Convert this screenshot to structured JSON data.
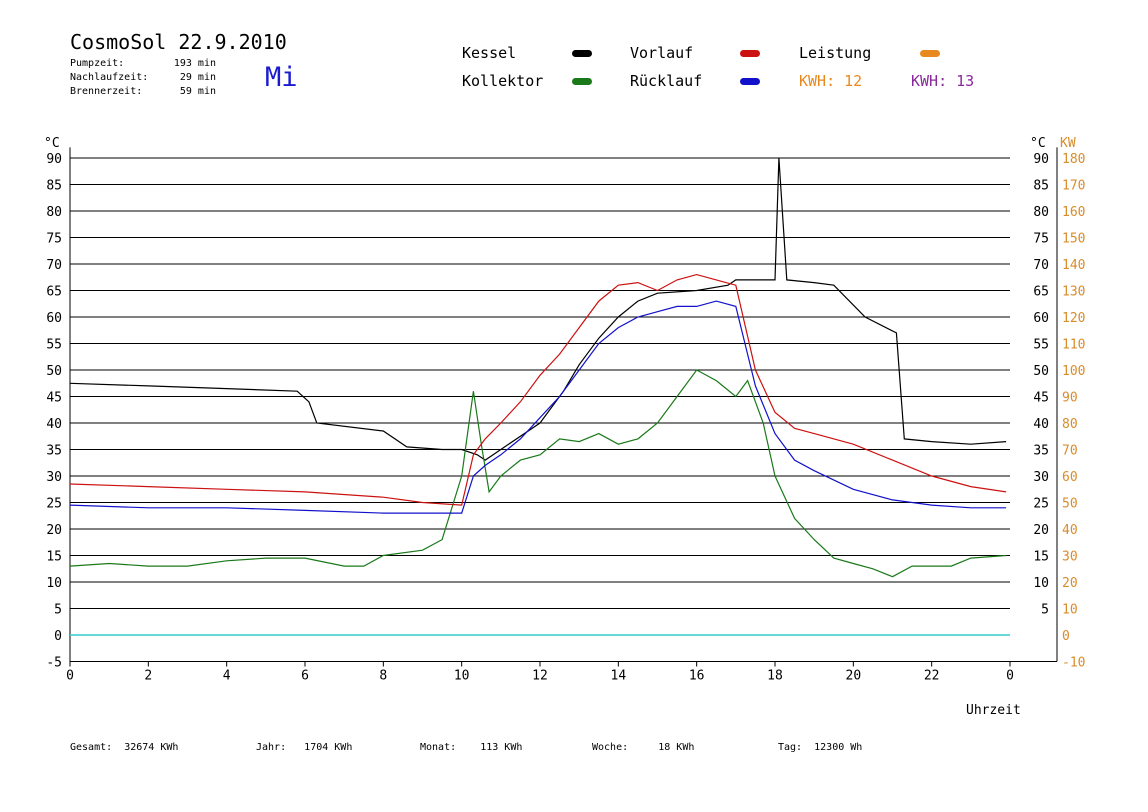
{
  "header": {
    "title": "CosmoSol 22.9.2010",
    "day": "Mi",
    "stats": [
      {
        "label": "Pumpzeit:",
        "value": "193 min"
      },
      {
        "label": "Nachlaufzeit:",
        "value": "29 min"
      },
      {
        "label": "Brennerzeit:",
        "value": "59 min"
      }
    ]
  },
  "legend": {
    "kessel": "Kessel",
    "kollektor": "Kollektor",
    "vorlauf": "Vorlauf",
    "ruecklauf": "Rücklauf",
    "leistung": "Leistung",
    "kwh1_label": "KWH:",
    "kwh1_value": "12",
    "kwh2_label": "KWH:",
    "kwh2_value": "13"
  },
  "footer": {
    "gesamt_label": "Gesamt:",
    "gesamt_value": "32674 KWh",
    "jahr_label": "Jahr:",
    "jahr_value": "1704 KWh",
    "monat_label": "Monat:",
    "monat_value": "113 KWh",
    "woche_label": "Woche:",
    "woche_value": "18 KWh",
    "tag_label": "Tag:",
    "tag_value": "12300 Wh"
  },
  "chart_data": {
    "type": "line",
    "xlabel": "Uhrzeit",
    "ylabel_left": "°C",
    "ylabel_right_1": "°C",
    "ylabel_right_2": "KW",
    "xlim": [
      0,
      24
    ],
    "ylim": [
      -5,
      92
    ],
    "ylim_right_kw": [
      -10,
      184
    ],
    "x_ticks": [
      "0",
      "2",
      "4",
      "6",
      "8",
      "10",
      "12",
      "14",
      "16",
      "18",
      "20",
      "22",
      "0"
    ],
    "y_ticks": [
      "-5",
      "0",
      "5",
      "10",
      "15",
      "20",
      "25",
      "30",
      "35",
      "40",
      "45",
      "50",
      "55",
      "60",
      "65",
      "70",
      "75",
      "80",
      "85",
      "90"
    ],
    "y_ticks_right_c": [
      "5",
      "10",
      "15",
      "20",
      "25",
      "30",
      "35",
      "40",
      "45",
      "50",
      "55",
      "60",
      "65",
      "70",
      "75",
      "80",
      "85",
      "90"
    ],
    "y_ticks_right_kw": [
      "-10",
      "0",
      "10",
      "20",
      "30",
      "40",
      "50",
      "60",
      "70",
      "80",
      "90",
      "100",
      "110",
      "120",
      "130",
      "140",
      "150",
      "160",
      "170",
      "180"
    ],
    "grid": true,
    "colors": {
      "kessel": "#000000",
      "kollektor": "#1a7a1a",
      "vorlauf": "#cc1111",
      "ruecklauf": "#1111cc",
      "leistung": "#e8891e",
      "kwh2": "#8a2a9a",
      "pump": "#33cccc",
      "axis_right": "#d98c2a"
    },
    "series": [
      {
        "name": "Kessel",
        "x": [
          0,
          2,
          4,
          5.8,
          6.1,
          6.3,
          8,
          8.6,
          9.5,
          10,
          10.4,
          10.6,
          11,
          12,
          12.6,
          13,
          13.5,
          14,
          14.5,
          15,
          16,
          16.8,
          17,
          18,
          18.1,
          18.3,
          19,
          19.5,
          20.3,
          21.1,
          21.3,
          22,
          23,
          23.9
        ],
        "y": [
          47.5,
          47,
          46.5,
          46,
          44,
          40,
          38.5,
          35.5,
          35,
          35,
          34,
          33,
          35,
          40,
          46,
          51,
          56,
          60,
          63,
          64.5,
          65,
          66,
          67,
          67,
          90,
          67,
          66.5,
          66,
          60,
          57,
          37,
          36.5,
          36,
          36.5
        ]
      },
      {
        "name": "Kollektor",
        "x": [
          0,
          1,
          2,
          3,
          4,
          5,
          6,
          7,
          7.5,
          8,
          9,
          9.5,
          10,
          10.3,
          10.5,
          10.7,
          11,
          11.5,
          12,
          12.5,
          13,
          13.5,
          14,
          14.5,
          15,
          15.5,
          16,
          16.5,
          17,
          17.3,
          17.7,
          18,
          18.5,
          19,
          19.5,
          20,
          20.5,
          21,
          21.5,
          22,
          22.5,
          23,
          23.9
        ],
        "y": [
          13,
          13.5,
          13,
          13,
          14,
          14.5,
          14.5,
          13,
          13,
          15,
          16,
          18,
          30,
          46,
          36,
          27,
          30,
          33,
          34,
          37,
          36.5,
          38,
          36,
          37,
          40,
          45,
          50,
          48,
          45,
          48,
          40,
          30,
          22,
          18,
          14.5,
          13.5,
          12.5,
          11,
          13,
          13,
          13,
          14.5,
          15
        ]
      },
      {
        "name": "Vorlauf",
        "x": [
          0,
          2,
          4,
          6,
          8,
          9,
          10,
          10.3,
          10.6,
          11,
          11.5,
          12,
          12.5,
          13,
          13.5,
          14,
          14.5,
          15,
          15.5,
          16,
          16.5,
          17,
          17.5,
          18,
          18.5,
          19,
          20,
          21,
          22,
          23,
          23.9
        ],
        "y": [
          28.5,
          28,
          27.5,
          27,
          26,
          25,
          24.5,
          34,
          37,
          40,
          44,
          49,
          53,
          58,
          63,
          66,
          66.5,
          65,
          67,
          68,
          67,
          66,
          50,
          42,
          39,
          38,
          36,
          33,
          30,
          28,
          27
        ]
      },
      {
        "name": "Rücklauf",
        "x": [
          0,
          2,
          4,
          6,
          8,
          9,
          10,
          10.3,
          10.6,
          11,
          11.5,
          12,
          12.5,
          13,
          13.5,
          14,
          14.5,
          15,
          15.5,
          16,
          16.5,
          17,
          17.5,
          18,
          18.5,
          19,
          20,
          21,
          22,
          23,
          23.9
        ],
        "y": [
          24.5,
          24,
          24,
          23.5,
          23,
          23,
          23,
          30,
          32,
          34,
          37,
          41,
          45,
          50,
          55,
          58,
          60,
          61,
          62,
          62,
          63,
          62,
          47,
          38,
          33,
          31,
          27.5,
          25.5,
          24.5,
          24,
          24
        ]
      }
    ]
  }
}
